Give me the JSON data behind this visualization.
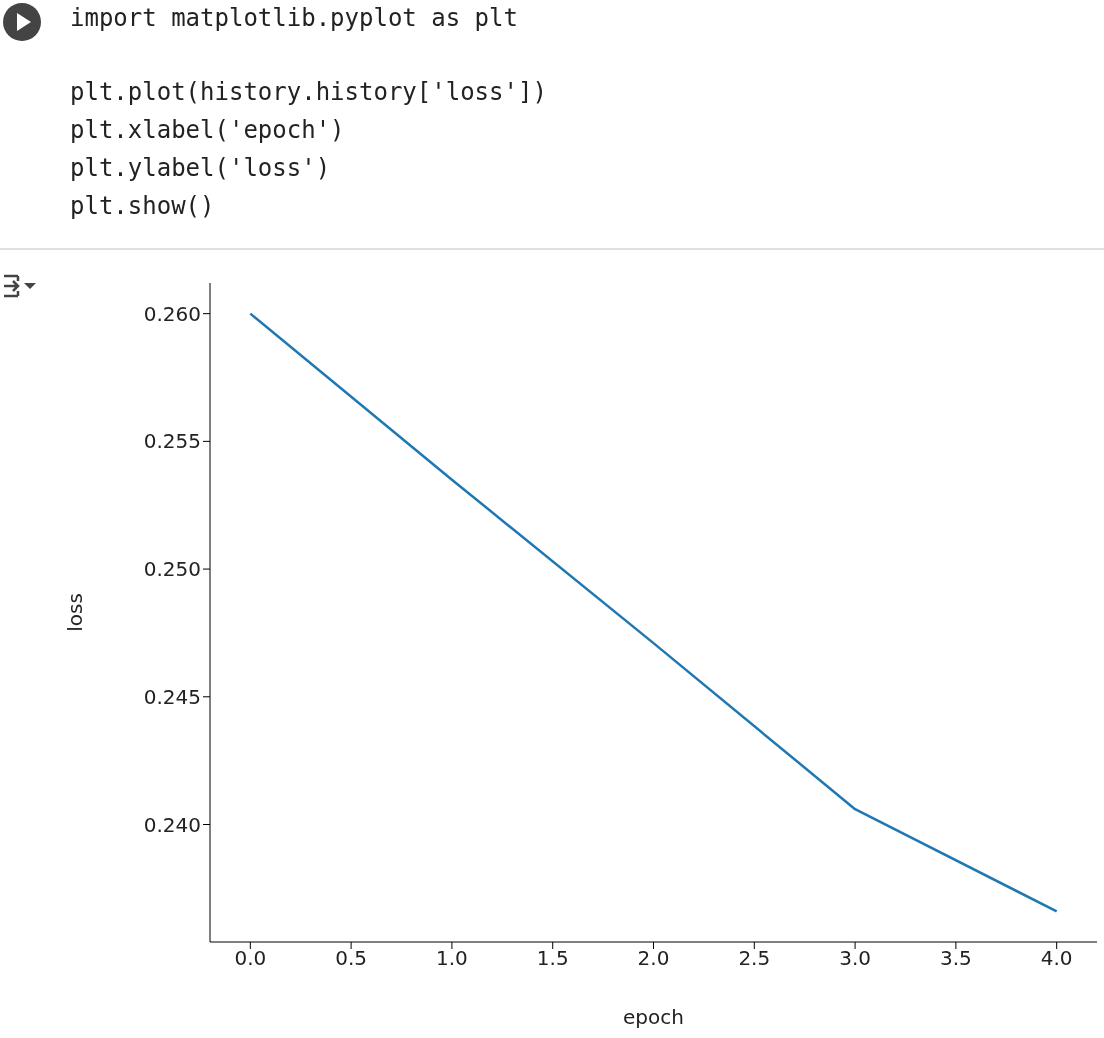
{
  "chart_data": {
    "type": "line",
    "xlabel": "epoch",
    "ylabel": "loss",
    "annotations": [
      "import matplotlib.pyplot as plt",
      "plt.plot(history.history['loss'])",
      "plt.xlabel('epoch')",
      "plt.ylabel('loss')",
      "plt.show()"
    ],
    "x": [
      0,
      1,
      2,
      3,
      4
    ],
    "series": [
      {
        "color": "#1f77b4",
        "values": [
          0.26,
          0.2535,
          0.2471,
          0.2406,
          0.2366
        ]
      }
    ],
    "xlim": [
      -0.2,
      4.2
    ],
    "xticks": [
      {
        "value": 0,
        "label": "0.0"
      },
      {
        "value": 0.5,
        "label": "0.5"
      },
      {
        "value": 1,
        "label": "1.0"
      },
      {
        "value": 1.5,
        "label": "1.5"
      },
      {
        "value": 2,
        "label": "2.0"
      },
      {
        "value": 2.5,
        "label": "2.5"
      },
      {
        "value": 3,
        "label": "3.0"
      },
      {
        "value": 3.5,
        "label": "3.5"
      },
      {
        "value": 4,
        "label": "4.0"
      }
    ],
    "ylim": [
      0.2354,
      0.2612
    ],
    "yticks": [
      {
        "value": 0.24,
        "label": "0.240"
      },
      {
        "value": 0.245,
        "label": "0.245"
      },
      {
        "value": 0.25,
        "label": "0.250"
      },
      {
        "value": 0.255,
        "label": "0.255"
      },
      {
        "value": 0.26,
        "label": "0.260"
      }
    ]
  }
}
